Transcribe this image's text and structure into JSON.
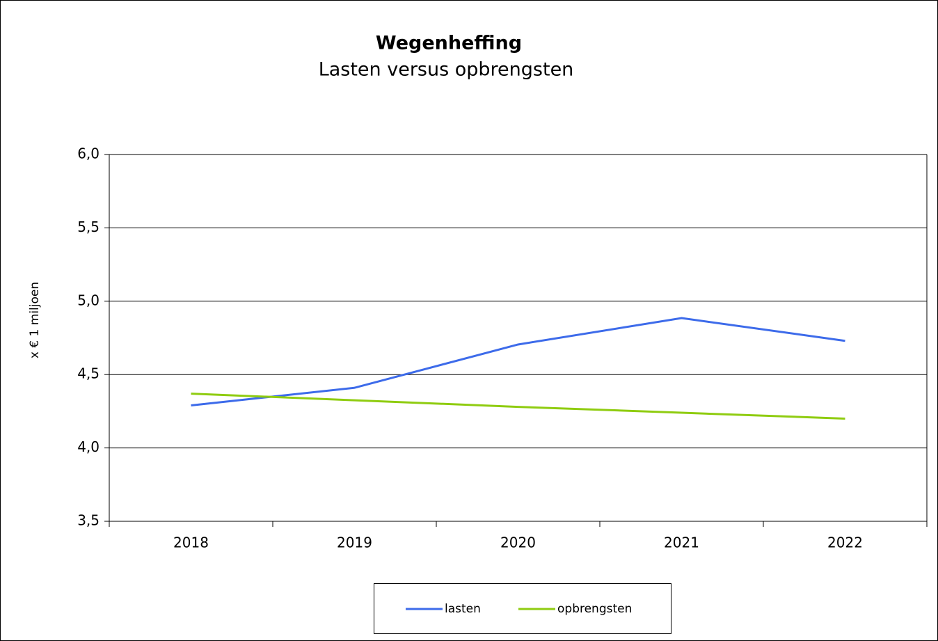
{
  "chart_data": {
    "type": "line",
    "title": "Wegenheffing",
    "subtitle": "Lasten versus opbrengsten",
    "y_label": "x € 1 miljoen",
    "categories": [
      "2018",
      "2019",
      "2020",
      "2021",
      "2022"
    ],
    "series": [
      {
        "name": "lasten",
        "color": "#3d6bea",
        "values": [
          4.29,
          4.41,
          4.705,
          4.885,
          4.73
        ]
      },
      {
        "name": "opbrengsten",
        "color": "#8fcc10",
        "values": [
          4.37,
          4.325,
          4.28,
          4.24,
          4.2
        ]
      }
    ],
    "ylim": [
      3.5,
      6.0
    ],
    "yticks": [
      {
        "value": 3.5,
        "label": "3,5"
      },
      {
        "value": 4.0,
        "label": "4,0"
      },
      {
        "value": 4.5,
        "label": "4,5"
      },
      {
        "value": 5.0,
        "label": "5,0"
      },
      {
        "value": 5.5,
        "label": "5,5"
      },
      {
        "value": 6.0,
        "label": "6,0"
      }
    ],
    "grid": true,
    "legend": "bottom"
  }
}
